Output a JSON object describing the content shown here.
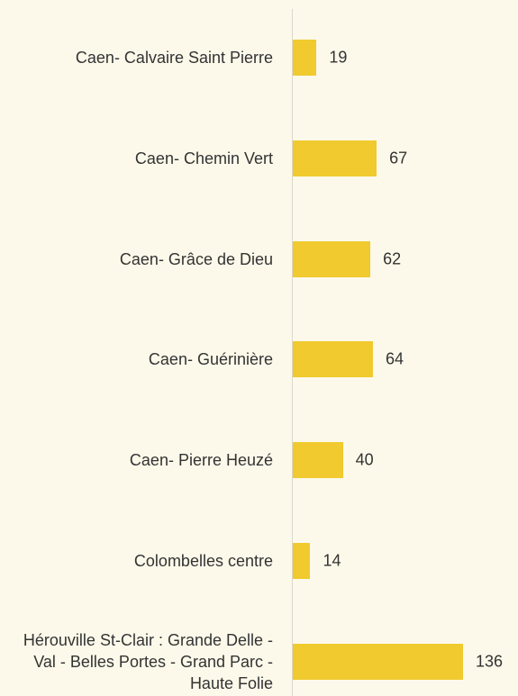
{
  "chart_data": {
    "type": "bar",
    "orientation": "horizontal",
    "categories": [
      "Caen- Calvaire Saint Pierre",
      "Caen- Chemin Vert",
      "Caen- Grâce de Dieu",
      "Caen- Guérinière",
      "Caen- Pierre Heuzé",
      "Colombelles centre",
      "Hérouville St-Clair : Grande Delle - Val - Belles Portes - Grand Parc - Haute Folie"
    ],
    "values": [
      19,
      67,
      62,
      64,
      40,
      14,
      136
    ],
    "color": "#f0ca2e"
  }
}
